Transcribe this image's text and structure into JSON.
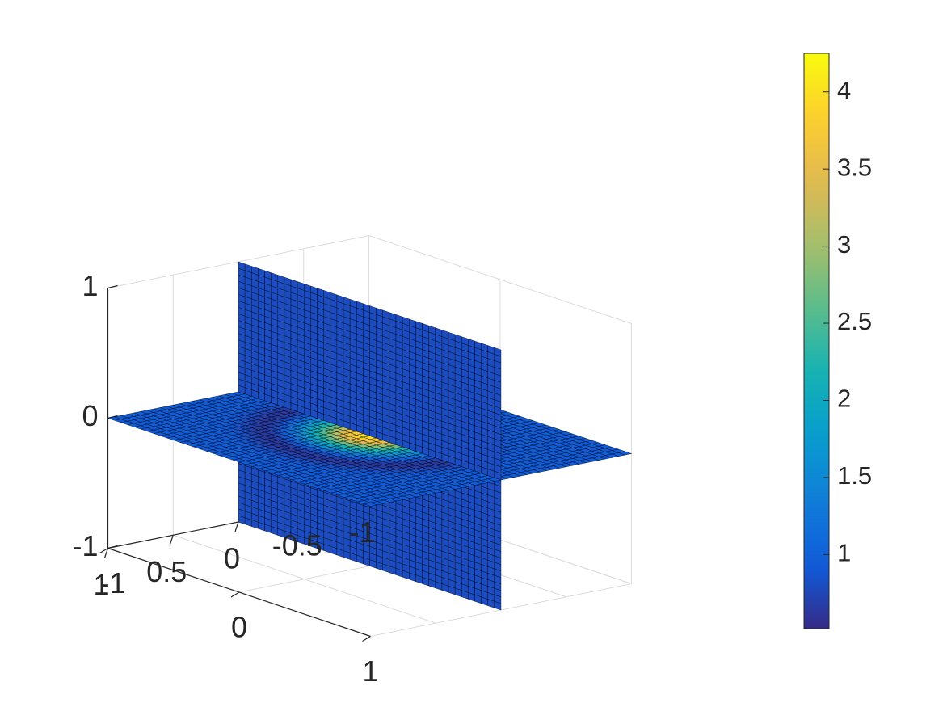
{
  "chart_data": {
    "type": "surface",
    "title": "",
    "xlabel": "",
    "ylabel": "",
    "zlabel": "",
    "grid": true,
    "colormap": "parula",
    "surface_grid": {
      "x_range": [
        -1,
        1
      ],
      "y_range": [
        -1,
        1
      ],
      "nx": 40,
      "ny": 40,
      "edge_color": "#000000"
    },
    "surfaces": [
      {
        "name": "",
        "plane": "z = 0",
        "profile": "gaussian-bump-with-dark-ring",
        "peak_value": 4.0,
        "dark_ring_value": 0.55
      },
      {
        "name": "",
        "plane": "x = 0",
        "profile": "constant",
        "color_value": 0.8
      }
    ],
    "axes": {
      "x": {
        "lim": [
          -1,
          1
        ],
        "ticks": [
          1,
          0.5,
          0,
          -0.5,
          -1
        ],
        "tick_labels": [
          "1",
          "0.5",
          "0",
          "-0.5",
          "-1"
        ]
      },
      "y": {
        "lim": [
          -1,
          1
        ],
        "ticks": [
          -1,
          0,
          1
        ],
        "tick_labels": [
          "-1",
          "0",
          "1"
        ]
      },
      "z": {
        "lim": [
          -1,
          1
        ],
        "ticks": [
          -1,
          0,
          1
        ],
        "tick_labels": [
          "-1",
          "0",
          "1"
        ]
      }
    },
    "colorbar": {
      "range": [
        0.52,
        4.25
      ],
      "ticks": [
        1,
        1.5,
        2,
        2.5,
        3,
        3.5,
        4
      ],
      "tick_labels": [
        "1",
        "1.5",
        "2",
        "2.5",
        "3",
        "3.5",
        "4"
      ],
      "position": "right"
    }
  }
}
